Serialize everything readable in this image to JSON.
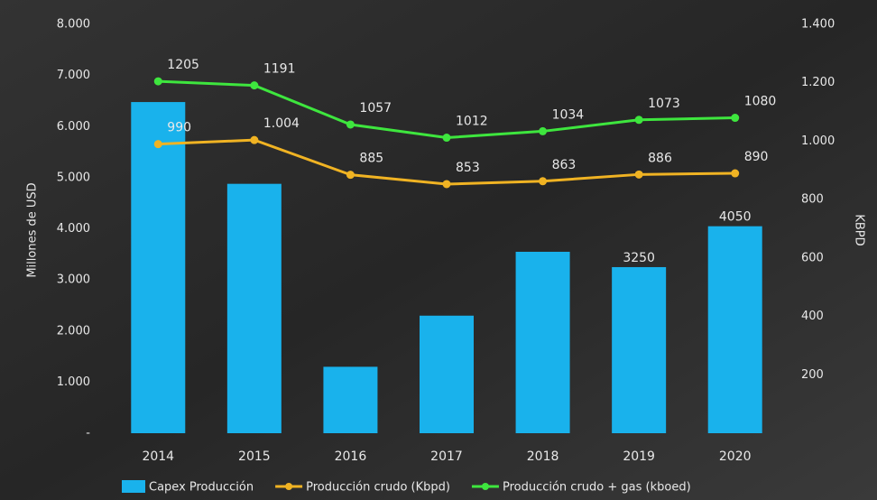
{
  "chart_data": {
    "type": "bar-line",
    "categories": [
      "2014",
      "2015",
      "2016",
      "2017",
      "2018",
      "2019",
      "2020"
    ],
    "ylabel": "Millones de USD",
    "y2label": "KBPD",
    "ylim": [
      0,
      8000
    ],
    "yticks": [
      {
        "value": 0,
        "label": "-"
      },
      {
        "value": 1000,
        "label": "1.000"
      },
      {
        "value": 2000,
        "label": "2.000"
      },
      {
        "value": 3000,
        "label": "3.000"
      },
      {
        "value": 4000,
        "label": "4.000"
      },
      {
        "value": 5000,
        "label": "5.000"
      },
      {
        "value": 6000,
        "label": "6.000"
      },
      {
        "value": 7000,
        "label": "7.000"
      },
      {
        "value": 8000,
        "label": "8.000"
      }
    ],
    "y2lim": [
      0,
      1400
    ],
    "y2ticks": [
      200,
      400,
      600,
      800,
      {
        "value": 1000,
        "label": "1.000"
      },
      {
        "value": 1200,
        "label": "1.200"
      },
      {
        "value": 1400,
        "label": "1.400"
      }
    ],
    "series": [
      {
        "name": "Capex Producción",
        "type": "bar",
        "color": "#19b2ec",
        "values": [
          6480,
          4880,
          1300,
          2300,
          3550,
          3250,
          4050
        ],
        "value_labels": [
          null,
          null,
          null,
          null,
          null,
          "3250",
          "4050"
        ]
      },
      {
        "name": "Producción crudo (Kbpd)",
        "type": "line",
        "axis": "y2",
        "color": "#f0b323",
        "values": [
          990,
          1004,
          885,
          853,
          863,
          886,
          890
        ],
        "value_labels": [
          "990",
          "1.004",
          "885",
          "853",
          "863",
          "886",
          "890"
        ]
      },
      {
        "name": "Producción crudo + gas (kboed)",
        "type": "line",
        "axis": "y2",
        "color": "#3ee63e",
        "values": [
          1205,
          1191,
          1057,
          1012,
          1034,
          1073,
          1080
        ],
        "value_labels": [
          "1205",
          "1191",
          "1057",
          "1012",
          "1034",
          "1073",
          "1080"
        ]
      }
    ]
  }
}
